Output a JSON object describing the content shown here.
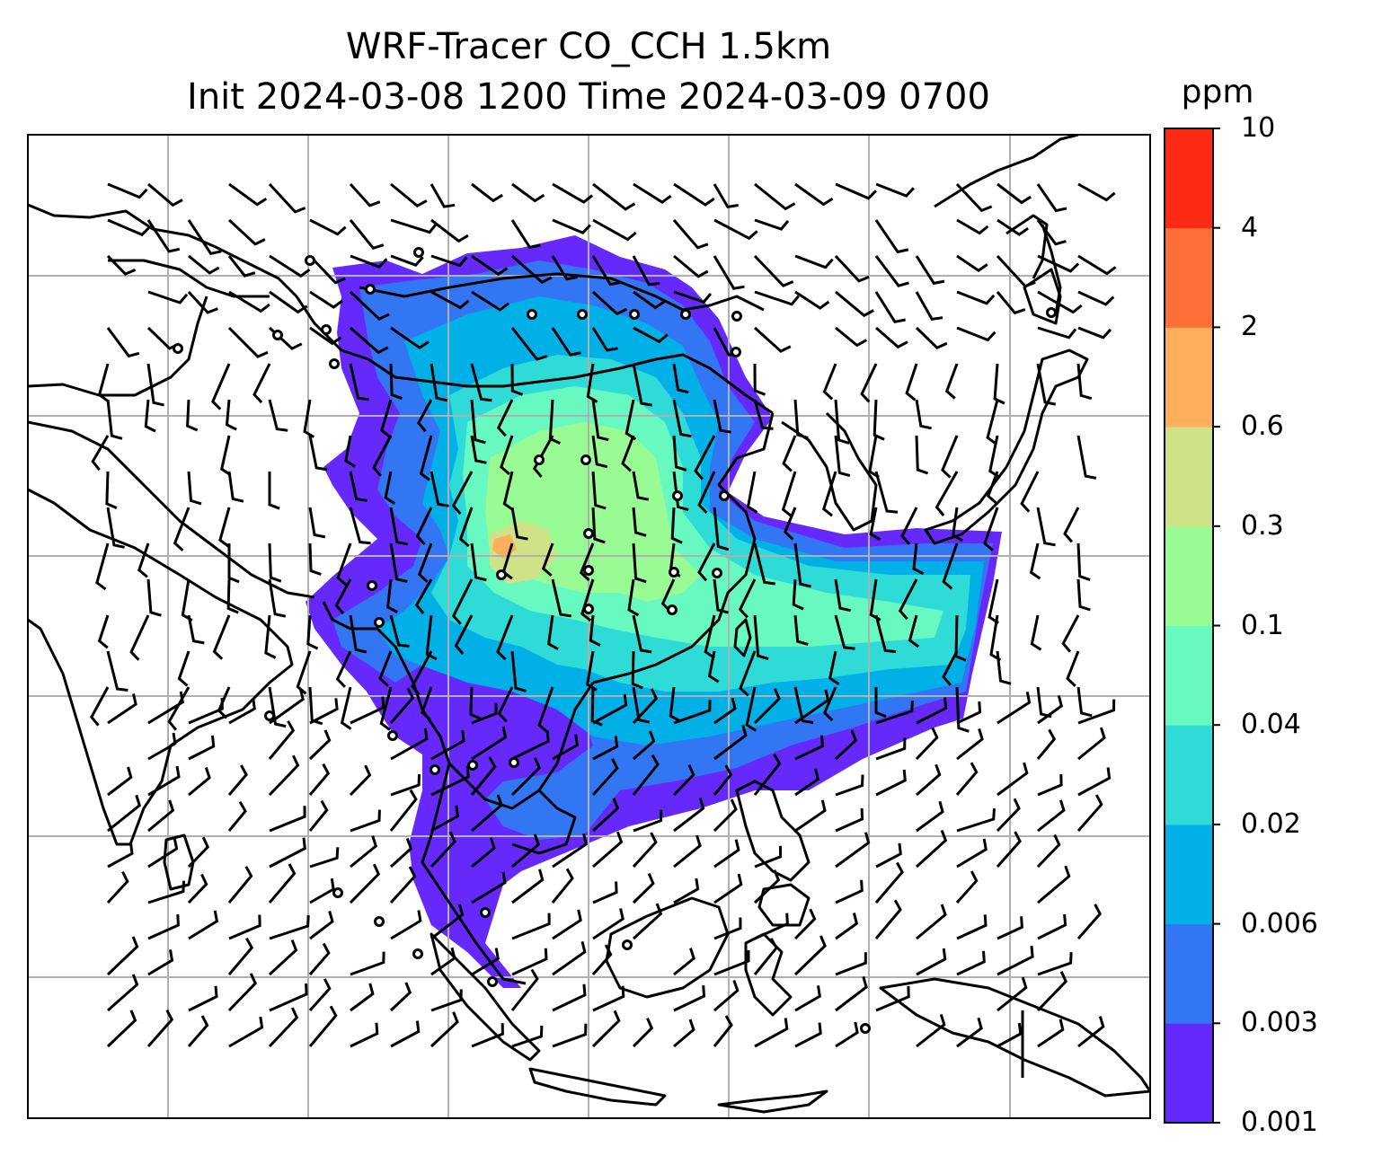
{
  "title": {
    "line1": "WRF-Tracer CO_CCH 1.5km",
    "line2": "Init 2024-03-08 1200 Time 2024-03-09 0700"
  },
  "colorbar": {
    "unit": "ppm",
    "levels": [
      "0.001",
      "0.003",
      "0.006",
      "0.02",
      "0.04",
      "0.1",
      "0.3",
      "0.6",
      "2",
      "4",
      "10"
    ],
    "colors": [
      "#6629fb",
      "#3276f4",
      "#02b0e8",
      "#2fdbd6",
      "#67f9c0",
      "#98fb94",
      "#d0e287",
      "#fdaf5b",
      "#ff7038",
      "#ff2a15"
    ]
  },
  "map": {
    "land_outline_color": "#000000",
    "gridline_color": "#b0b0b0",
    "barb_color": "#000000",
    "grid": true
  }
}
